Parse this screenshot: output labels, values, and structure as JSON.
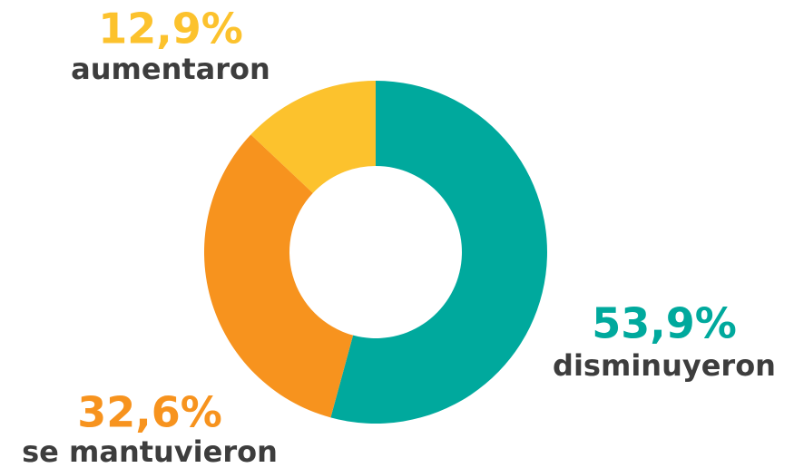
{
  "chart_data": {
    "type": "donut",
    "categories": [
      "disminuyeron",
      "se mantuvieron",
      "aumentaron"
    ],
    "values": [
      53.9,
      32.6,
      12.9
    ],
    "value_labels": [
      "53,9%",
      "32,6%",
      "12,9%"
    ],
    "colors": [
      "#00a99d",
      "#f7931e",
      "#fcc22d"
    ]
  }
}
